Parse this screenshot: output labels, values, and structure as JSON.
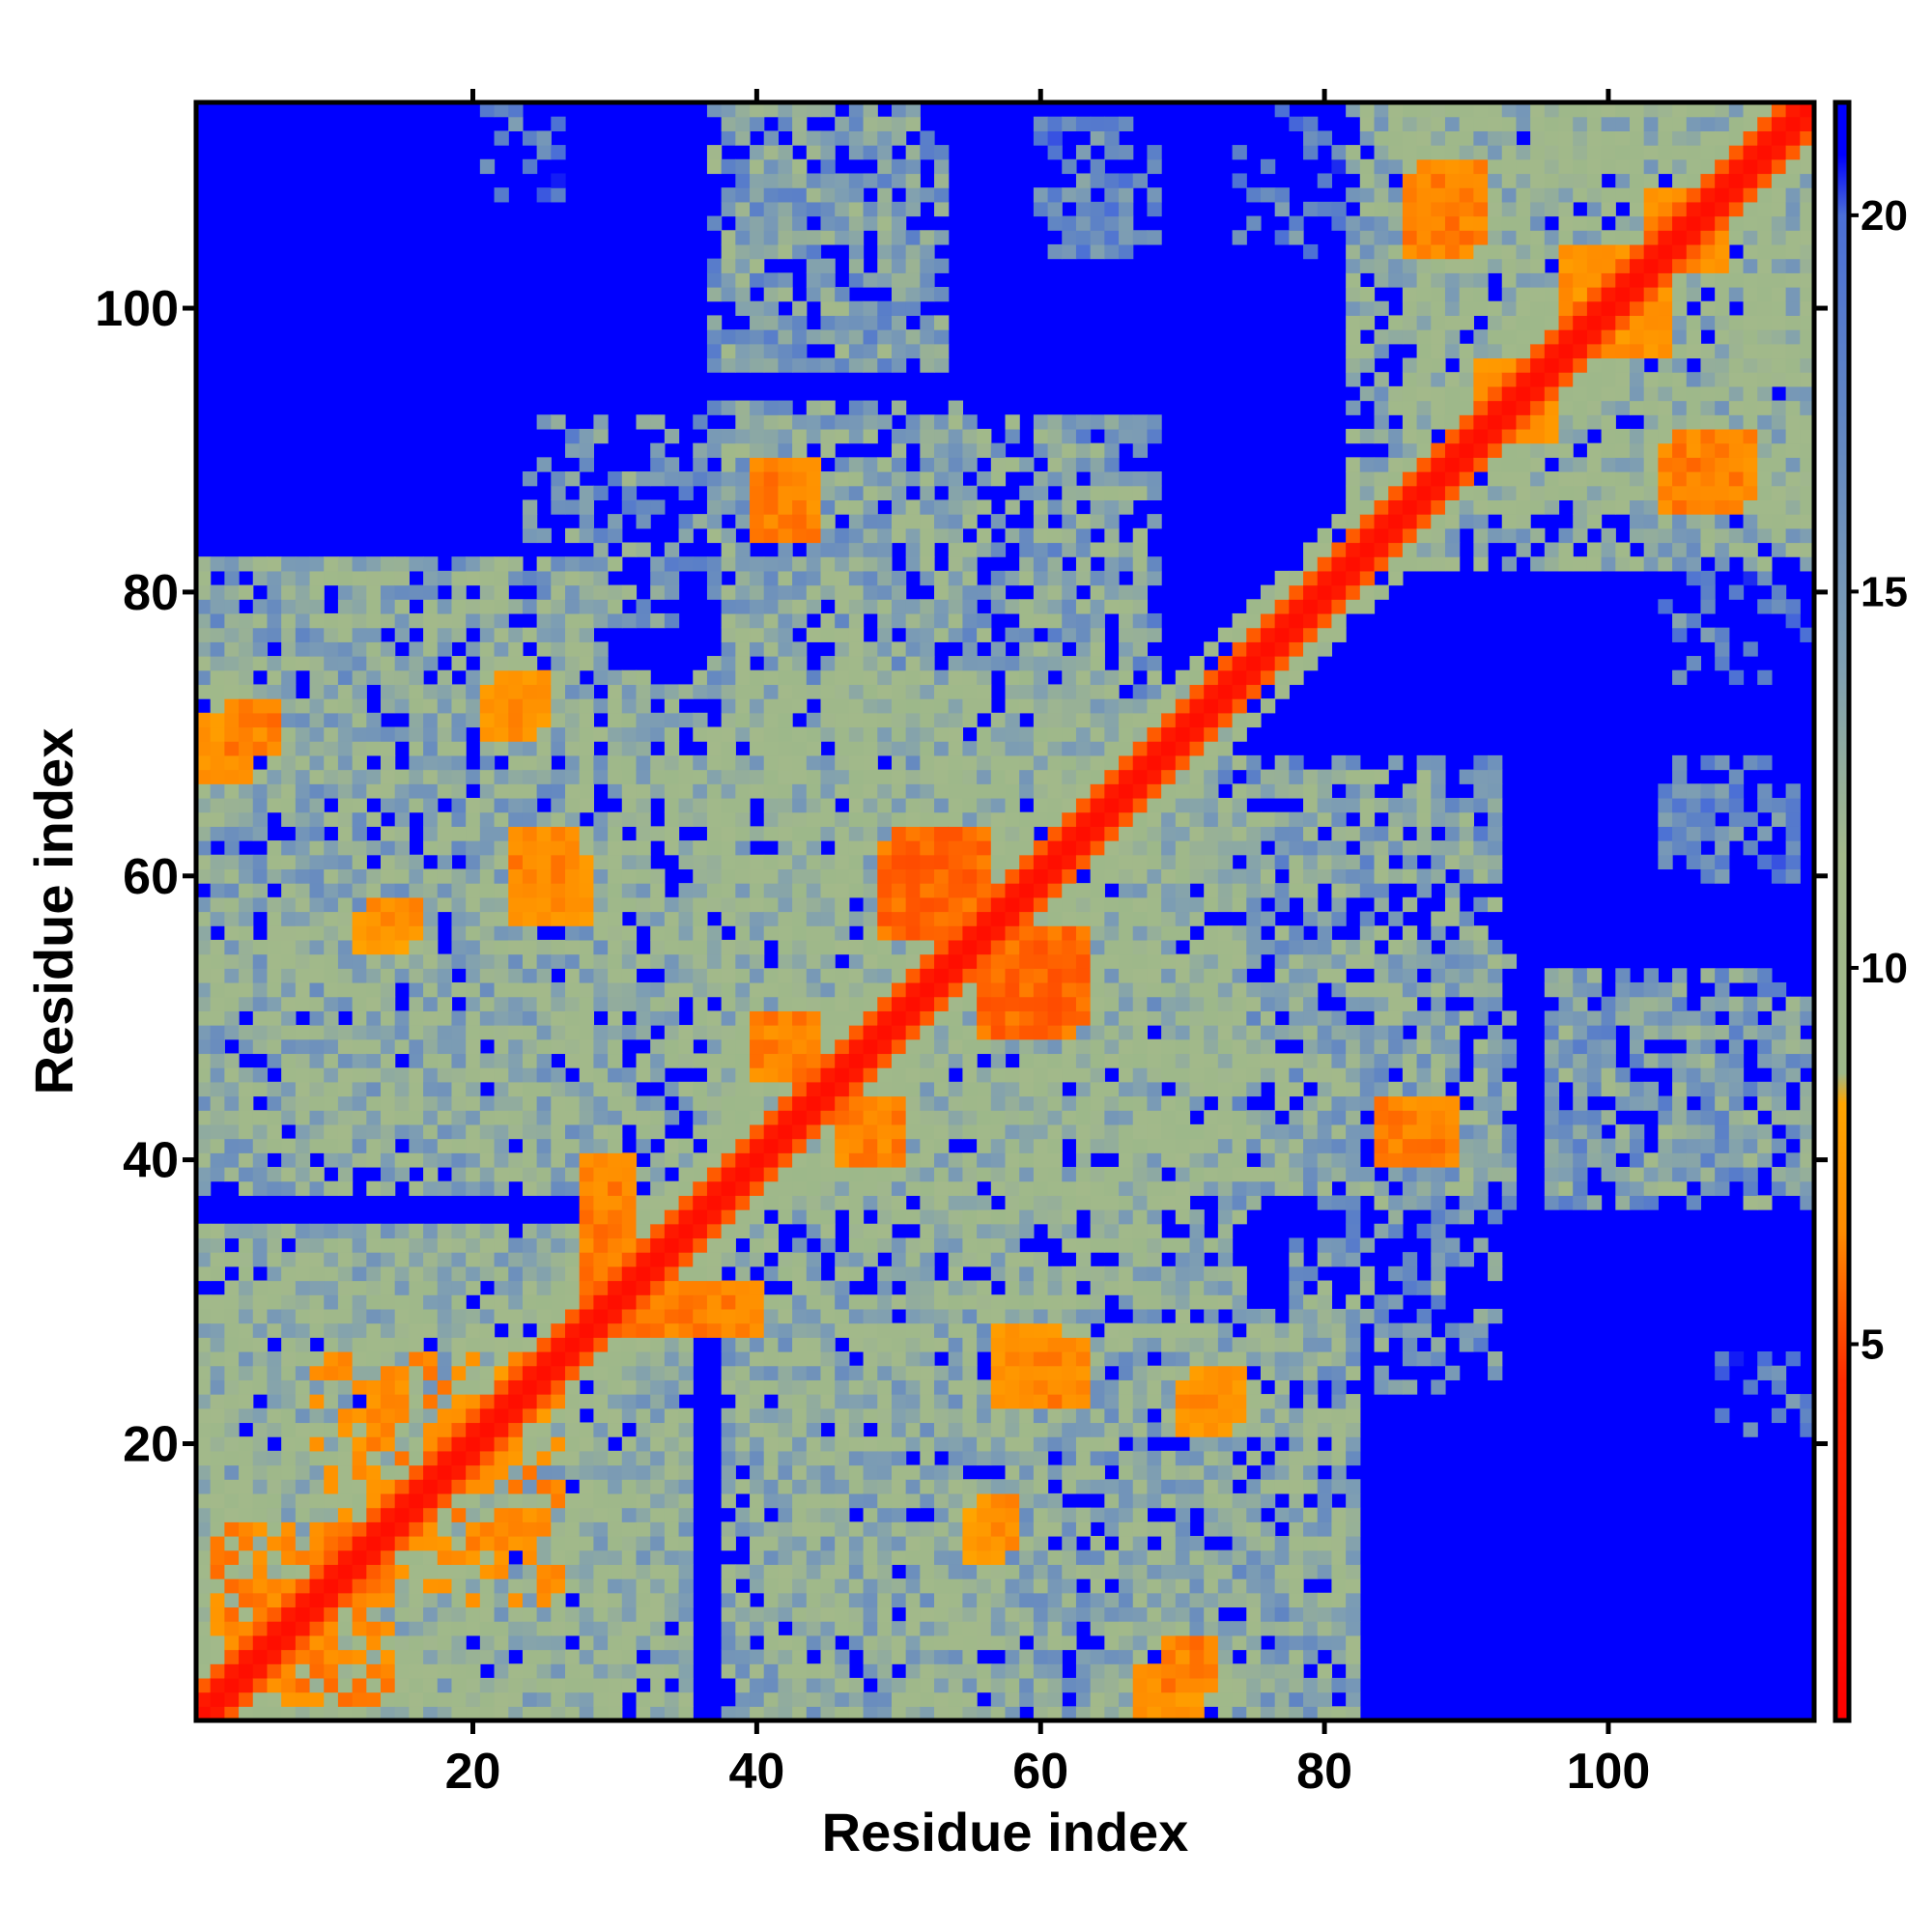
{
  "chart_data": {
    "type": "heatmap",
    "title": "",
    "xlabel": "Residue index",
    "ylabel": "Residue index",
    "n_residues": 114,
    "xlim": [
      0.5,
      114.5
    ],
    "ylim": [
      0.5,
      114.5
    ],
    "x_ticks": [
      20,
      40,
      60,
      80,
      100
    ],
    "y_ticks": [
      20,
      40,
      60,
      80,
      100
    ],
    "colorbar": {
      "ticks": [
        5,
        10,
        15,
        20
      ],
      "range": [
        0,
        21.5
      ],
      "stops": [
        {
          "value": 0,
          "color": "#ff0000"
        },
        {
          "value": 4.5,
          "color": "#ff2a00"
        },
        {
          "value": 6.5,
          "color": "#ff8c00"
        },
        {
          "value": 8.2,
          "color": "#ffa500"
        },
        {
          "value": 8.6,
          "color": "#9db88a"
        },
        {
          "value": 11.5,
          "color": "#a3b98a"
        },
        {
          "value": 14.0,
          "color": "#7f9fb2"
        },
        {
          "value": 17.5,
          "color": "#5f84c4"
        },
        {
          "value": 20.0,
          "color": "#4b6fd6"
        },
        {
          "value": 20.8,
          "color": "#0000ff"
        },
        {
          "value": 21.5,
          "color": "#0000ff"
        }
      ]
    },
    "background_value": 21.5,
    "diagonal_width": 1.6,
    "contact_regions": [
      {
        "x": [
          1,
          35
        ],
        "y": [
          1,
          35
        ],
        "value": 12.5,
        "density": 0.78
      },
      {
        "x": [
          1,
          30
        ],
        "y": [
          38,
          82
        ],
        "value": 13.0,
        "density": 0.7
      },
      {
        "x": [
          24,
          36
        ],
        "y": [
          78,
          92
        ],
        "value": 15.0,
        "density": 0.4
      },
      {
        "x": [
          40,
          60
        ],
        "y": [
          1,
          30
        ],
        "value": 13.0,
        "density": 0.72
      },
      {
        "x": [
          60,
          82
        ],
        "y": [
          1,
          28
        ],
        "value": 14.0,
        "density": 0.6
      },
      {
        "x": [
          36,
          74
        ],
        "y": [
          30,
          70
        ],
        "value": 12.0,
        "density": 0.72
      },
      {
        "x": [
          37,
          55
        ],
        "y": [
          66,
          93
        ],
        "value": 14.0,
        "density": 0.6
      },
      {
        "x": [
          60,
          68
        ],
        "y": [
          66,
          92
        ],
        "value": 15.5,
        "density": 0.5
      },
      {
        "x": [
          37,
          52
        ],
        "y": [
          96,
          114
        ],
        "value": 15.0,
        "density": 0.55
      },
      {
        "x": [
          60,
          66
        ],
        "y": [
          104,
          114
        ],
        "value": 17.0,
        "density": 0.35
      },
      {
        "x": [
          72,
          92
        ],
        "y": [
          38,
          67
        ],
        "value": 13.5,
        "density": 0.62
      },
      {
        "x": [
          96,
          113
        ],
        "y": [
          38,
          53
        ],
        "value": 14.5,
        "density": 0.5
      },
      {
        "x": [
          104,
          113
        ],
        "y": [
          62,
          68
        ],
        "value": 16.5,
        "density": 0.5
      },
      {
        "x": [
          86,
          114
        ],
        "y": [
          82,
          114
        ],
        "value": 12.5,
        "density": 0.75
      },
      {
        "x": [
          108,
          114
        ],
        "y": [
          20,
          26
        ],
        "value": 17.5,
        "density": 0.35
      },
      {
        "x": [
          74,
          84
        ],
        "y": [
          104,
          114
        ],
        "value": 17.0,
        "density": 0.3
      }
    ],
    "close_contacts": [
      {
        "x": [
          3,
          6
        ],
        "y": [
          69,
          72
        ],
        "value": 6.5
      },
      {
        "x": [
          13,
          16
        ],
        "y": [
          56,
          58
        ],
        "value": 7.0
      },
      {
        "x": [
          23,
          27
        ],
        "y": [
          58,
          63
        ],
        "value": 6.5
      },
      {
        "x": [
          22,
          25
        ],
        "y": [
          71,
          74
        ],
        "value": 7.0
      },
      {
        "x": [
          40,
          44
        ],
        "y": [
          84,
          89
        ],
        "value": 6.5
      },
      {
        "x": [
          40,
          44
        ],
        "y": [
          46,
          50
        ],
        "value": 7.0
      },
      {
        "x": [
          46,
          50
        ],
        "y": [
          40,
          44
        ],
        "value": 6.5
      },
      {
        "x": [
          50,
          56
        ],
        "y": [
          56,
          63
        ],
        "value": 6.0
      },
      {
        "x": [
          56,
          62
        ],
        "y": [
          49,
          55
        ],
        "value": 6.0
      },
      {
        "x": [
          28,
          31
        ],
        "y": [
          31,
          40
        ],
        "value": 6.5
      },
      {
        "x": [
          31,
          37
        ],
        "y": [
          28,
          31
        ],
        "value": 6.5
      },
      {
        "x": [
          57,
          61
        ],
        "y": [
          23,
          28
        ],
        "value": 7.0
      },
      {
        "x": [
          70,
          73
        ],
        "y": [
          21,
          24
        ],
        "value": 7.0
      },
      {
        "x": [
          55,
          57
        ],
        "y": [
          12,
          15
        ],
        "value": 7.5
      },
      {
        "x": [
          67,
          71
        ],
        "y": [
          1,
          4
        ],
        "value": 7.0
      },
      {
        "x": [
          84,
          89
        ],
        "y": [
          40,
          43
        ],
        "value": 6.5
      },
      {
        "x": [
          87,
          91
        ],
        "y": [
          105,
          110
        ],
        "value": 6.5
      },
      {
        "x": [
          91,
          95
        ],
        "y": [
          91,
          96
        ],
        "value": 7.0
      },
      {
        "x": [
          104,
          109
        ],
        "y": [
          86,
          90
        ],
        "value": 6.5
      },
      {
        "x": [
          99,
          104
        ],
        "y": [
          97,
          104
        ],
        "value": 7.0
      },
      {
        "x": [
          103,
          108
        ],
        "y": [
          103,
          107
        ],
        "value": 7.0
      },
      {
        "x": [
          2,
          14
        ],
        "y": [
          2,
          14
        ],
        "value": 6.5,
        "sparse": true
      },
      {
        "x": [
          9,
          24
        ],
        "y": [
          12,
          26
        ],
        "value": 6.8,
        "sparse": true
      }
    ]
  }
}
